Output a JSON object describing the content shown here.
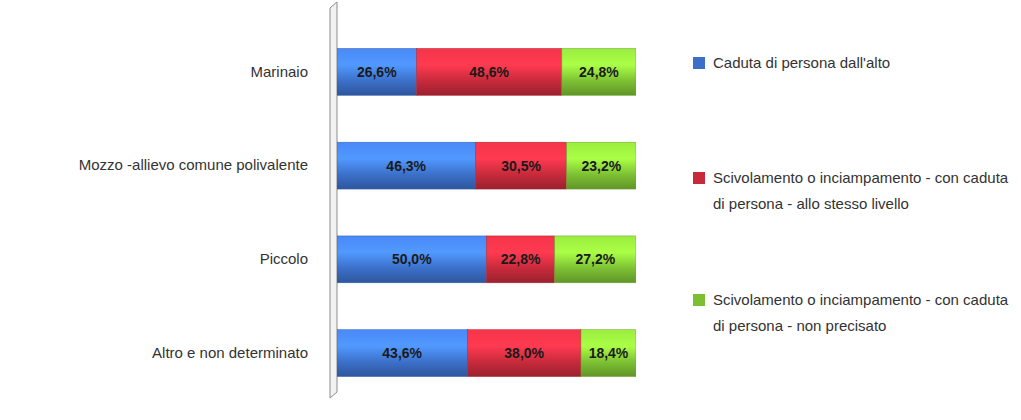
{
  "chart_data": {
    "type": "bar",
    "orientation": "horizontal",
    "stacked": true,
    "data_labels": true,
    "tick_labels": "y",
    "legend": "right",
    "categories": [
      "Marinaio",
      "Mozzo -allievo comune polivalente",
      "Piccolo",
      "Altro e non determinato"
    ],
    "series": [
      {
        "name": "Caduta di persona dall'alto",
        "color": "#3b6fc8",
        "values": [
          26.6,
          46.3,
          50.0,
          43.6
        ],
        "value_labels": [
          "26,6%",
          "46,3%",
          "50,0%",
          "43,6%"
        ]
      },
      {
        "name": "Scivolamento o inciampamento - con caduta di persona - allo stesso livello",
        "color": "#c62a3b",
        "values": [
          48.6,
          30.5,
          22.8,
          38.0
        ],
        "value_labels": [
          "48,6%",
          "30,5%",
          "22,8%",
          "38,0%"
        ]
      },
      {
        "name": "Scivolamento o inciampamento - con caduta di persona - non precisato",
        "color": "#7cbf33",
        "values": [
          24.8,
          23.2,
          27.2,
          18.4
        ],
        "value_labels": [
          "24,8%",
          "23,2%",
          "27,2%",
          "18,4%"
        ]
      }
    ]
  }
}
